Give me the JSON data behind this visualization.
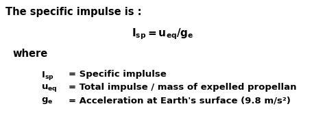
{
  "background_color": "#ffffff",
  "title_text": "The specific impulse is :",
  "formula_text": "$\\mathbf{I_{sp} = u_{eq}/g_{e}}$",
  "where_text": "where",
  "line1_left": "$\\mathbf{I_{sp}}$",
  "line1_right": "= Specific implulse",
  "line2_left": "$\\mathbf{u_{eq}}$",
  "line2_right": "= Total impulse / mass of expelled propellan",
  "line3_left": "$\\mathbf{g_{e}}$",
  "line3_right": "= Acceleration at Earth's surface (9.8 m/s²)",
  "fontsize_title": 10.5,
  "fontsize_formula": 11,
  "fontsize_body": 9.5
}
